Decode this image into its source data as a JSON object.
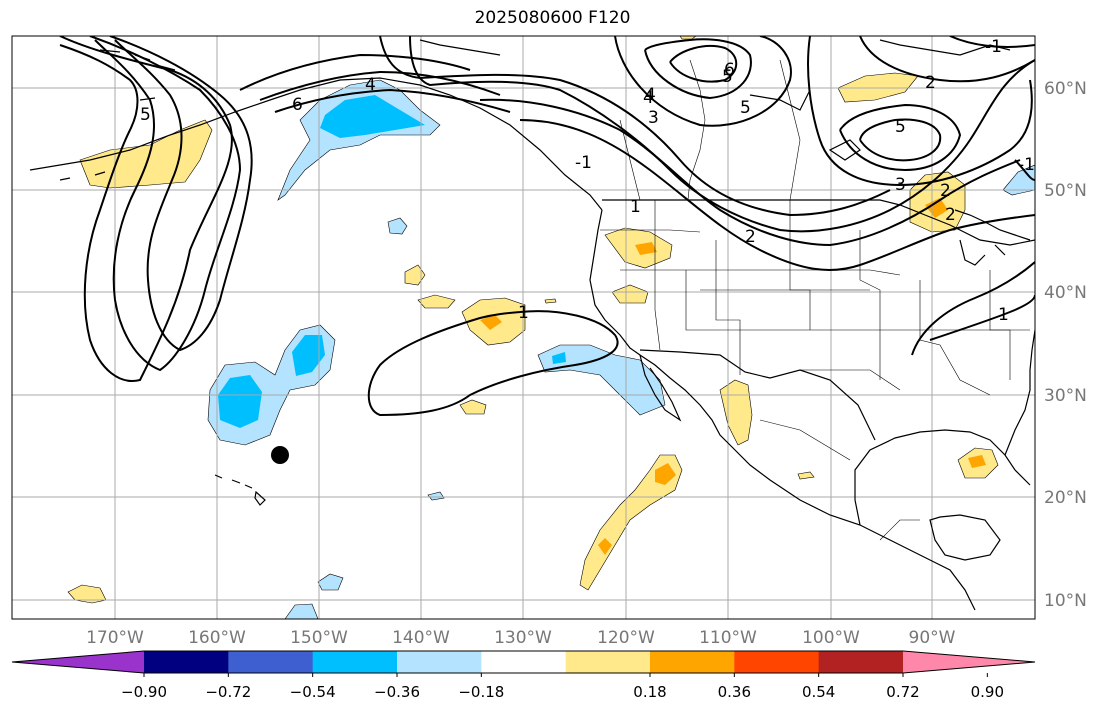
{
  "title": "2025080600 F120",
  "lat_labels": [
    "60°N",
    "50°N",
    "40°N",
    "30°N",
    "20°N",
    "10°N"
  ],
  "lon_labels": [
    "170°W",
    "160°W",
    "150°W",
    "140°W",
    "130°W",
    "120°W",
    "110°W",
    "100°W",
    "90°W"
  ],
  "colorbar": {
    "ticks": [
      "−0.90",
      "−0.72",
      "−0.54",
      "−0.36",
      "−0.18",
      "0.18",
      "0.36",
      "0.54",
      "0.72",
      "0.90"
    ],
    "colors": [
      "#9933cc",
      "#000080",
      "#3d5fcf",
      "#00bfff",
      "#b3e3ff",
      "#ffffff",
      "#ffe98a",
      "#ffa500",
      "#ff4500",
      "#b22222",
      "#ff88aa"
    ]
  },
  "contour_labels": [
    "5",
    "6",
    "4",
    "1",
    "1",
    "-1",
    "1",
    "2",
    "5",
    "4",
    "3",
    "6",
    "5",
    "3",
    "2",
    "2",
    "-1",
    "5",
    "4",
    "2",
    "-1"
  ],
  "colors": {
    "positive_light": "#ffe98a",
    "positive_mid": "#ffa500",
    "negative_light": "#b3e3ff",
    "negative_mid": "#00bfff",
    "grid": "#aaaaaa",
    "tick_text": "#777777"
  }
}
